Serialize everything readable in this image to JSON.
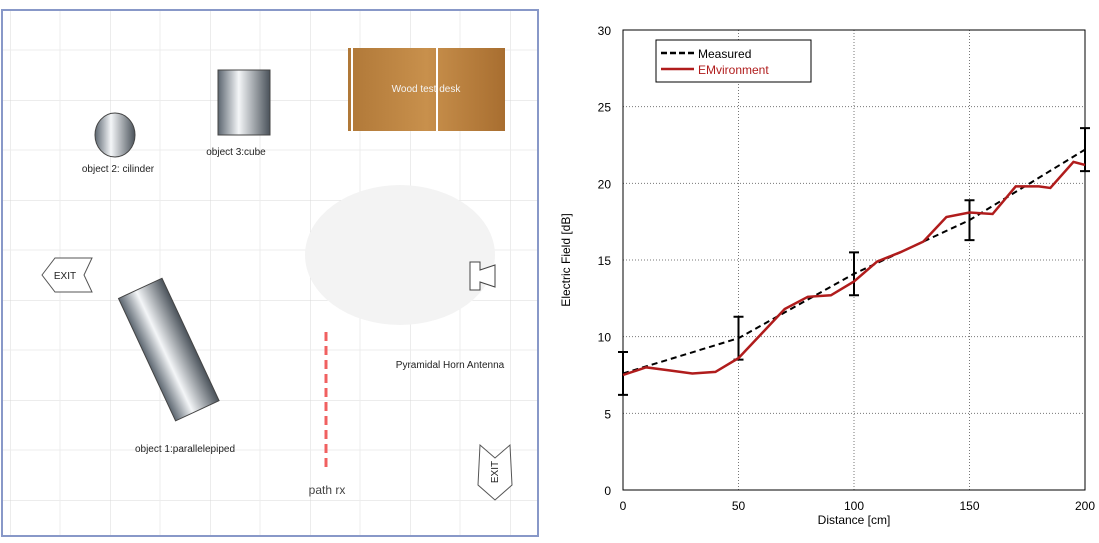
{
  "diagram": {
    "labels": [
      "Wood test desk",
      "object 2: cilinder",
      "object 3:cube",
      "EXIT",
      "EXIT",
      "Pyramidal Horn Antenna",
      "object 1:parallelepiped",
      "path rx"
    ]
  },
  "chart_data": {
    "type": "line",
    "xlabel": "Distance [cm]",
    "ylabel": "Electric Field [dB]",
    "xlim": [
      0,
      200
    ],
    "xticks": [
      0,
      50,
      100,
      150,
      200
    ],
    "ylim": [
      0,
      30
    ],
    "yticks": [
      0,
      5,
      10,
      15,
      20,
      25,
      30
    ],
    "grid": true,
    "legend": "upper left",
    "series": [
      {
        "name": "Measured",
        "color": "#000000",
        "dashed": true,
        "x": [
          0,
          50,
          100,
          150,
          200
        ],
        "values": [
          7.6,
          9.9,
          14.1,
          17.6,
          22.2
        ],
        "errors": [
          1.4,
          1.4,
          1.4,
          1.3,
          1.4
        ]
      },
      {
        "name": "EMvironment",
        "color": "#b01c1c",
        "dashed": false,
        "x": [
          0,
          10,
          20,
          30,
          40,
          50,
          60,
          70,
          80,
          90,
          100,
          110,
          120,
          130,
          140,
          150,
          160,
          170,
          180,
          185,
          195,
          200
        ],
        "values": [
          7.5,
          8.0,
          7.8,
          7.6,
          7.7,
          8.6,
          10.2,
          11.8,
          12.6,
          12.7,
          13.6,
          14.9,
          15.5,
          16.2,
          17.8,
          18.1,
          18.0,
          19.8,
          19.8,
          19.7,
          21.4,
          21.2
        ]
      }
    ]
  }
}
